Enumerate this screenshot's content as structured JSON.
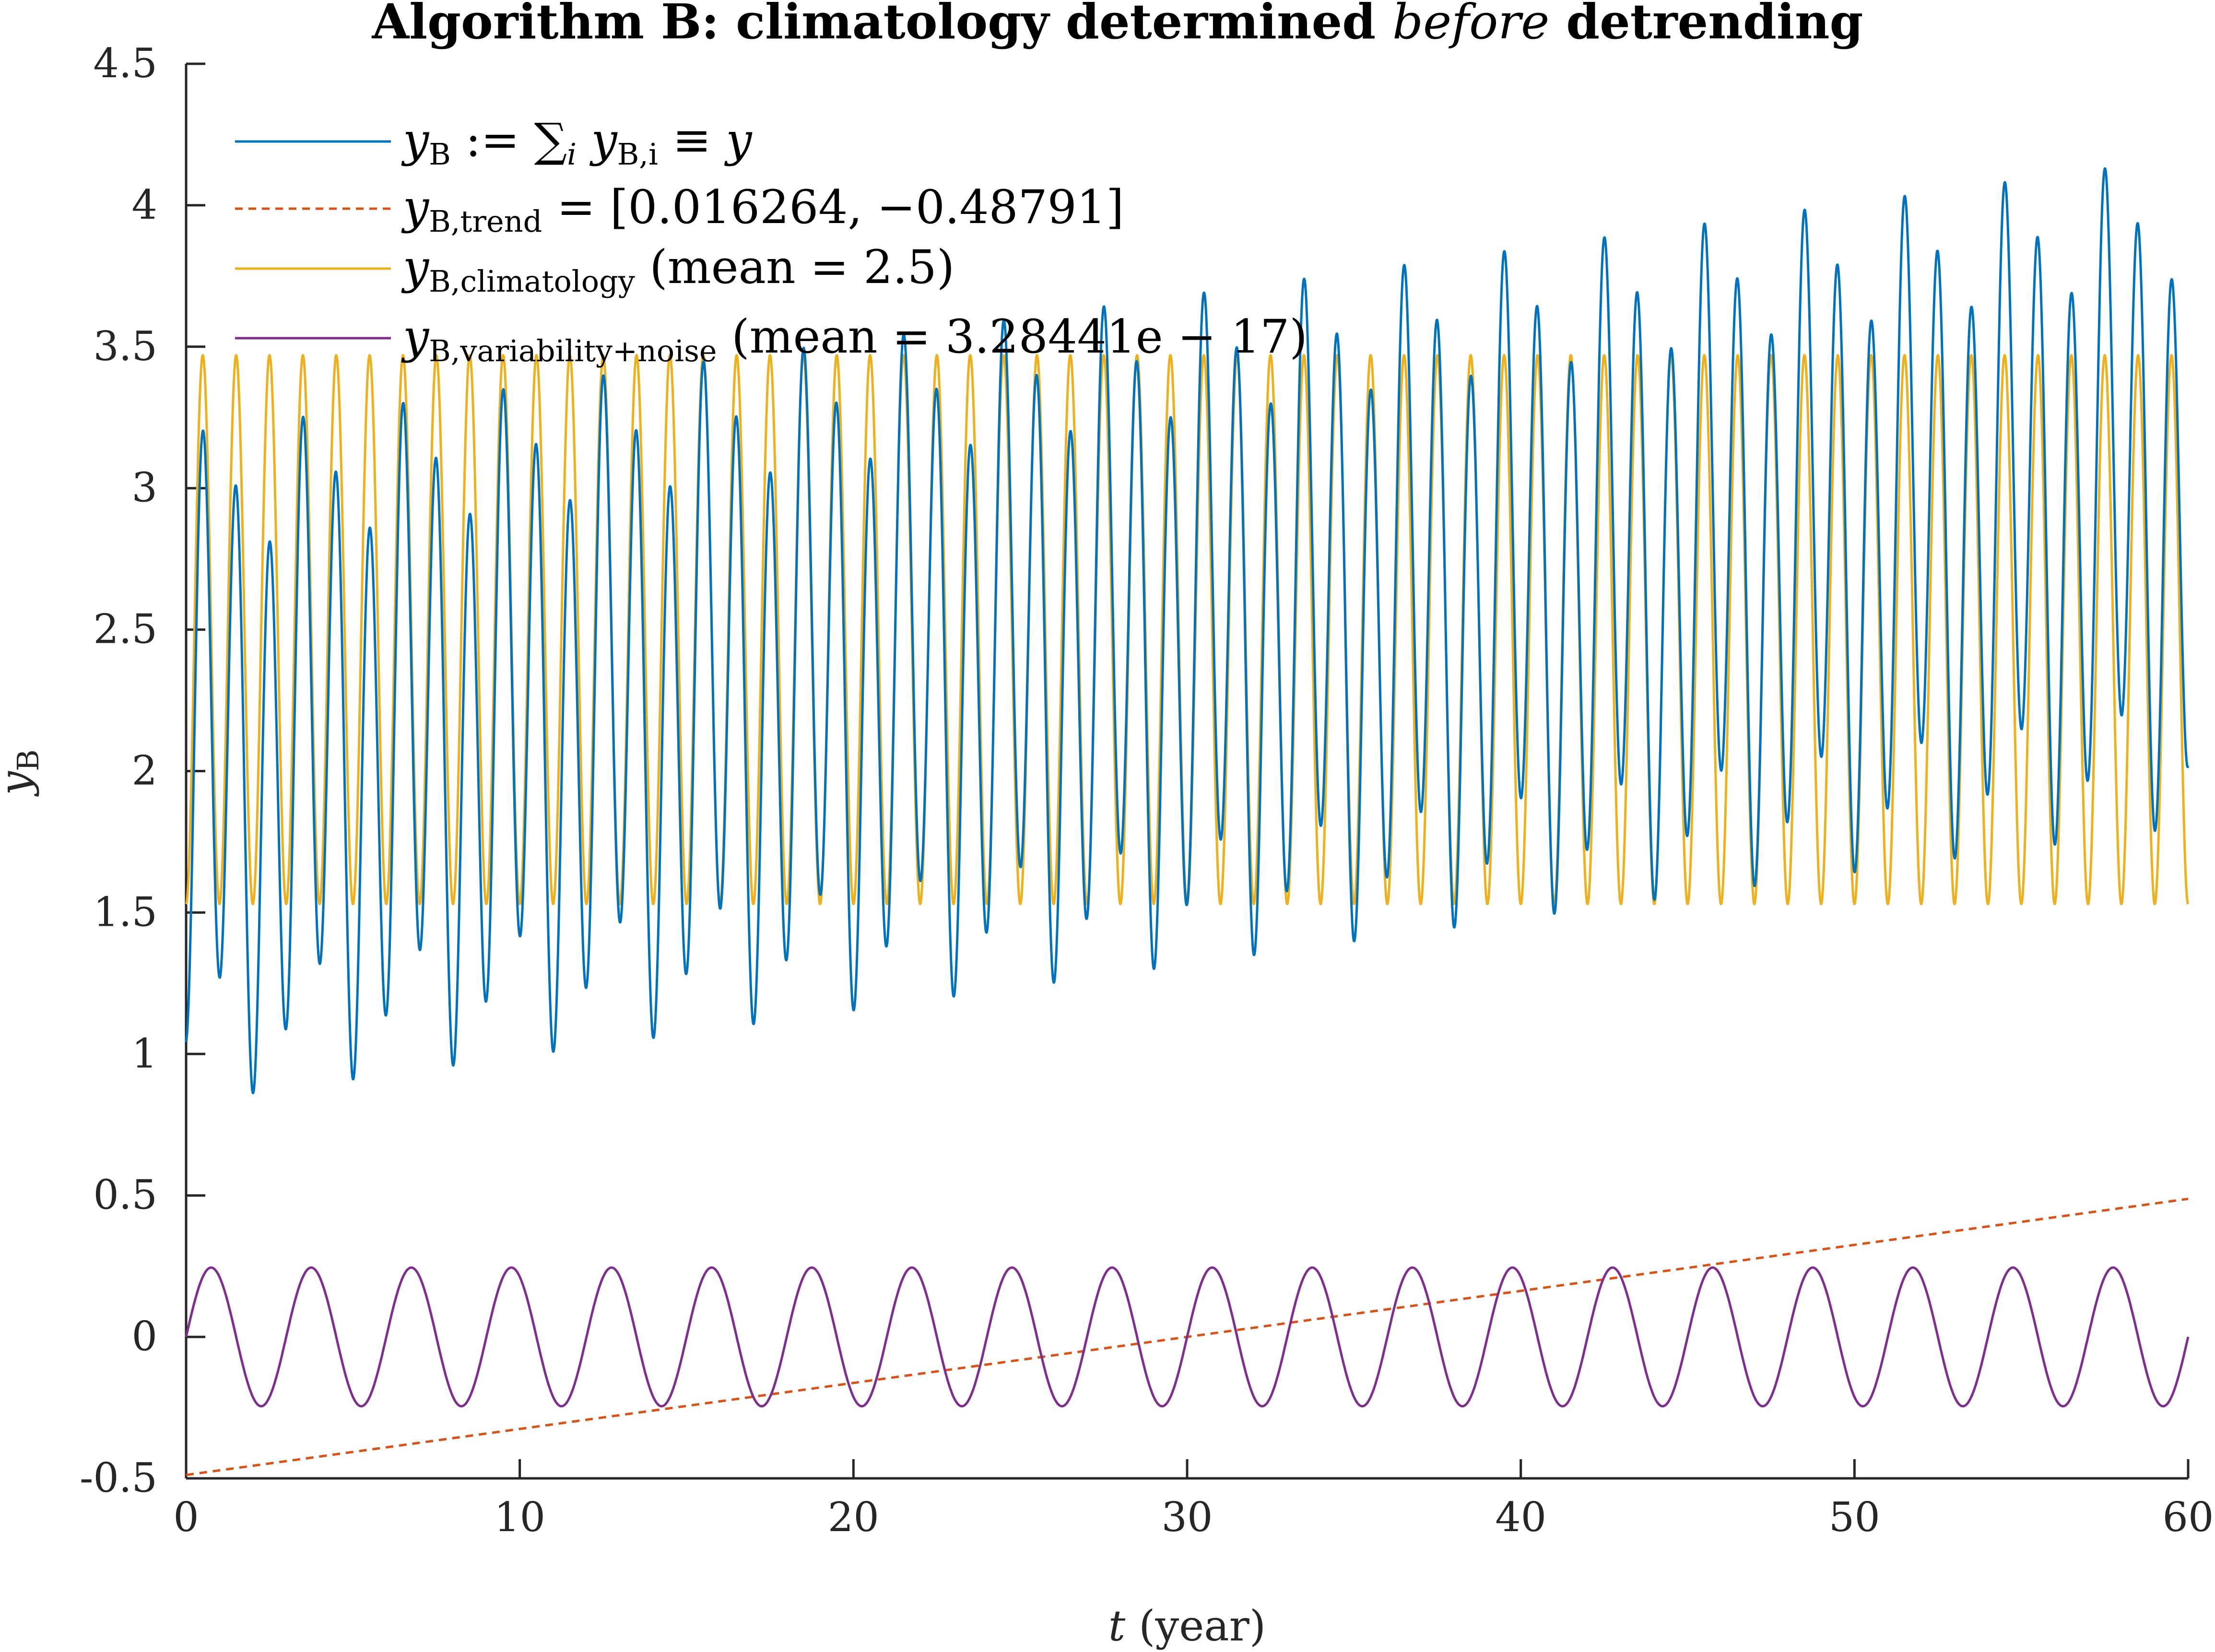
{
  "chart_data": {
    "type": "line",
    "title": {
      "part1": "Algorithm B: climatology determined ",
      "emphasis": "before",
      "part2": " detrending"
    },
    "xlabel": {
      "var": "t",
      "unit": "(year)"
    },
    "ylabel": {
      "var": "y",
      "sub": "B"
    },
    "xlim": [
      0,
      60
    ],
    "ylim": [
      -0.5,
      4.5
    ],
    "xticks": [
      0,
      10,
      20,
      30,
      40,
      50,
      60
    ],
    "xtick_labels": [
      "0",
      "10",
      "20",
      "30",
      "40",
      "50",
      "60"
    ],
    "yticks": [
      -0.5,
      0,
      0.5,
      1,
      1.5,
      2,
      2.5,
      3,
      3.5,
      4,
      4.5
    ],
    "ytick_labels": [
      "-0.5",
      "0",
      "0.5",
      "1",
      "1.5",
      "2",
      "2.5",
      "3",
      "3.5",
      "4",
      "4.5"
    ],
    "grid": false,
    "legend_position": "top-left",
    "series": [
      {
        "id": "total",
        "legend": {
          "var": "y",
          "sub": "B",
          "rest": " := ∑",
          "sum_sub": "i",
          "rest2": " y",
          "sub2": "B,i",
          "rest3": " ≡ y"
        },
        "color": "#0072BD",
        "dash": "solid",
        "model": "trend + climatology + variability"
      },
      {
        "id": "trend",
        "legend": {
          "var": "y",
          "sub": "B,trend",
          "rest": " = [0.016264, −0.48791]"
        },
        "color": "#D95319",
        "dash": "dashed",
        "slope": 0.016264,
        "intercept": -0.48791,
        "x": [
          0,
          60
        ],
        "y": [
          -0.48791,
          0.48793
        ]
      },
      {
        "id": "climatology",
        "legend": {
          "var": "y",
          "sub": "B,climatology",
          "rest": " (mean = 2.5)"
        },
        "color": "#EDB120",
        "dash": "solid",
        "mean": 2.5,
        "amplitude": 0.97,
        "period": 1,
        "min": 1.53,
        "max": 3.47
      },
      {
        "id": "variability",
        "legend": {
          "var": "y",
          "sub": "B,variability+noise",
          "rest": " (mean = 3.28441e − 17)"
        },
        "color": "#7E2F8E",
        "dash": "solid",
        "mean": 3.28441e-17,
        "amplitude": 0.245,
        "period": 3.0,
        "min": -0.25,
        "max": 0.24
      }
    ]
  }
}
